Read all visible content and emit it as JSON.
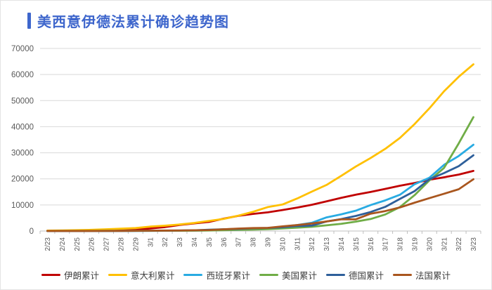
{
  "header": {
    "title": "美西意伊德法累计确诊趋势图"
  },
  "colors": {
    "title_blue": "#3E66CC",
    "accent_bar": "#3E66CC",
    "grid": "#D9D9D9",
    "axis_line": "#BFBFBF",
    "axis_text": "#595959",
    "legend_text": "#404040",
    "background": "#FFFFFF"
  },
  "chart_data": {
    "type": "line",
    "title": "美西意伊德法累计确诊趋势图",
    "xlabel": "",
    "ylabel": "",
    "grid": true,
    "legend_position": "bottom",
    "ylim": [
      0,
      70000
    ],
    "ytick_step": 10000,
    "ytick_labels": [
      "0",
      "10000",
      "20000",
      "30000",
      "40000",
      "50000",
      "60000",
      "70000"
    ],
    "categories": [
      "2/23",
      "2/24",
      "2/25",
      "2/26",
      "2/27",
      "2/28",
      "2/29",
      "3/1",
      "3/2",
      "3/3",
      "3/4",
      "3/5",
      "3/6",
      "3/7",
      "3/8",
      "3/9",
      "3/10",
      "3/11",
      "3/12",
      "3/13",
      "3/14",
      "3/15",
      "3/16",
      "3/17",
      "3/18",
      "3/19",
      "3/20",
      "3/21",
      "3/22",
      "3/23"
    ],
    "series": [
      {
        "key": "iran",
        "name": "伊朗累计",
        "color": "#C00000",
        "values": [
          43,
          61,
          95,
          139,
          245,
          388,
          593,
          978,
          1501,
          2336,
          2922,
          3513,
          4747,
          5823,
          6566,
          7161,
          8042,
          9000,
          10075,
          11364,
          12729,
          13938,
          14991,
          16169,
          17361,
          18407,
          19644,
          20610,
          21638,
          23049
        ]
      },
      {
        "key": "italy",
        "name": "意大利累计",
        "color": "#FFC000",
        "values": [
          155,
          229,
          322,
          453,
          655,
          888,
          1128,
          1694,
          2036,
          2502,
          3089,
          3858,
          4636,
          5883,
          7375,
          9172,
          10149,
          12462,
          15113,
          17660,
          21157,
          24747,
          27980,
          31506,
          35713,
          41035,
          47021,
          53578,
          59138,
          63927
        ]
      },
      {
        "key": "spain",
        "name": "西班牙累计",
        "color": "#29ABE2",
        "values": [
          2,
          2,
          6,
          13,
          15,
          32,
          45,
          84,
          120,
          165,
          222,
          259,
          400,
          500,
          673,
          1073,
          1695,
          2277,
          3146,
          5232,
          6391,
          7798,
          9942,
          11748,
          13910,
          17963,
          20410,
          25374,
          28768,
          33089
        ]
      },
      {
        "key": "us",
        "name": "美国累计",
        "color": "#70AD47",
        "values": [
          35,
          53,
          57,
          60,
          60,
          63,
          68,
          75,
          100,
          124,
          158,
          221,
          319,
          435,
          541,
          704,
          994,
          1301,
          1630,
          2183,
          2771,
          3613,
          4596,
          6344,
          9197,
          13779,
          19367,
          24192,
          33592,
          43667
        ]
      },
      {
        "key": "germany",
        "name": "德国累计",
        "color": "#2E5F9A",
        "values": [
          16,
          16,
          17,
          27,
          46,
          48,
          79,
          130,
          159,
          196,
          262,
          482,
          670,
          799,
          1040,
          1176,
          1457,
          1908,
          2078,
          3675,
          4585,
          5795,
          7272,
          9257,
          12327,
          15320,
          19848,
          22213,
          24873,
          29056
        ]
      },
      {
        "key": "france",
        "name": "法国累计",
        "color": "#A9561E",
        "values": [
          12,
          12,
          14,
          18,
          38,
          57,
          100,
          130,
          191,
          204,
          285,
          377,
          653,
          949,
          1126,
          1209,
          1784,
          2281,
          2876,
          3661,
          4469,
          4499,
          6633,
          7652,
          9043,
          10871,
          12612,
          14282,
          16018,
          19856
        ]
      }
    ]
  }
}
